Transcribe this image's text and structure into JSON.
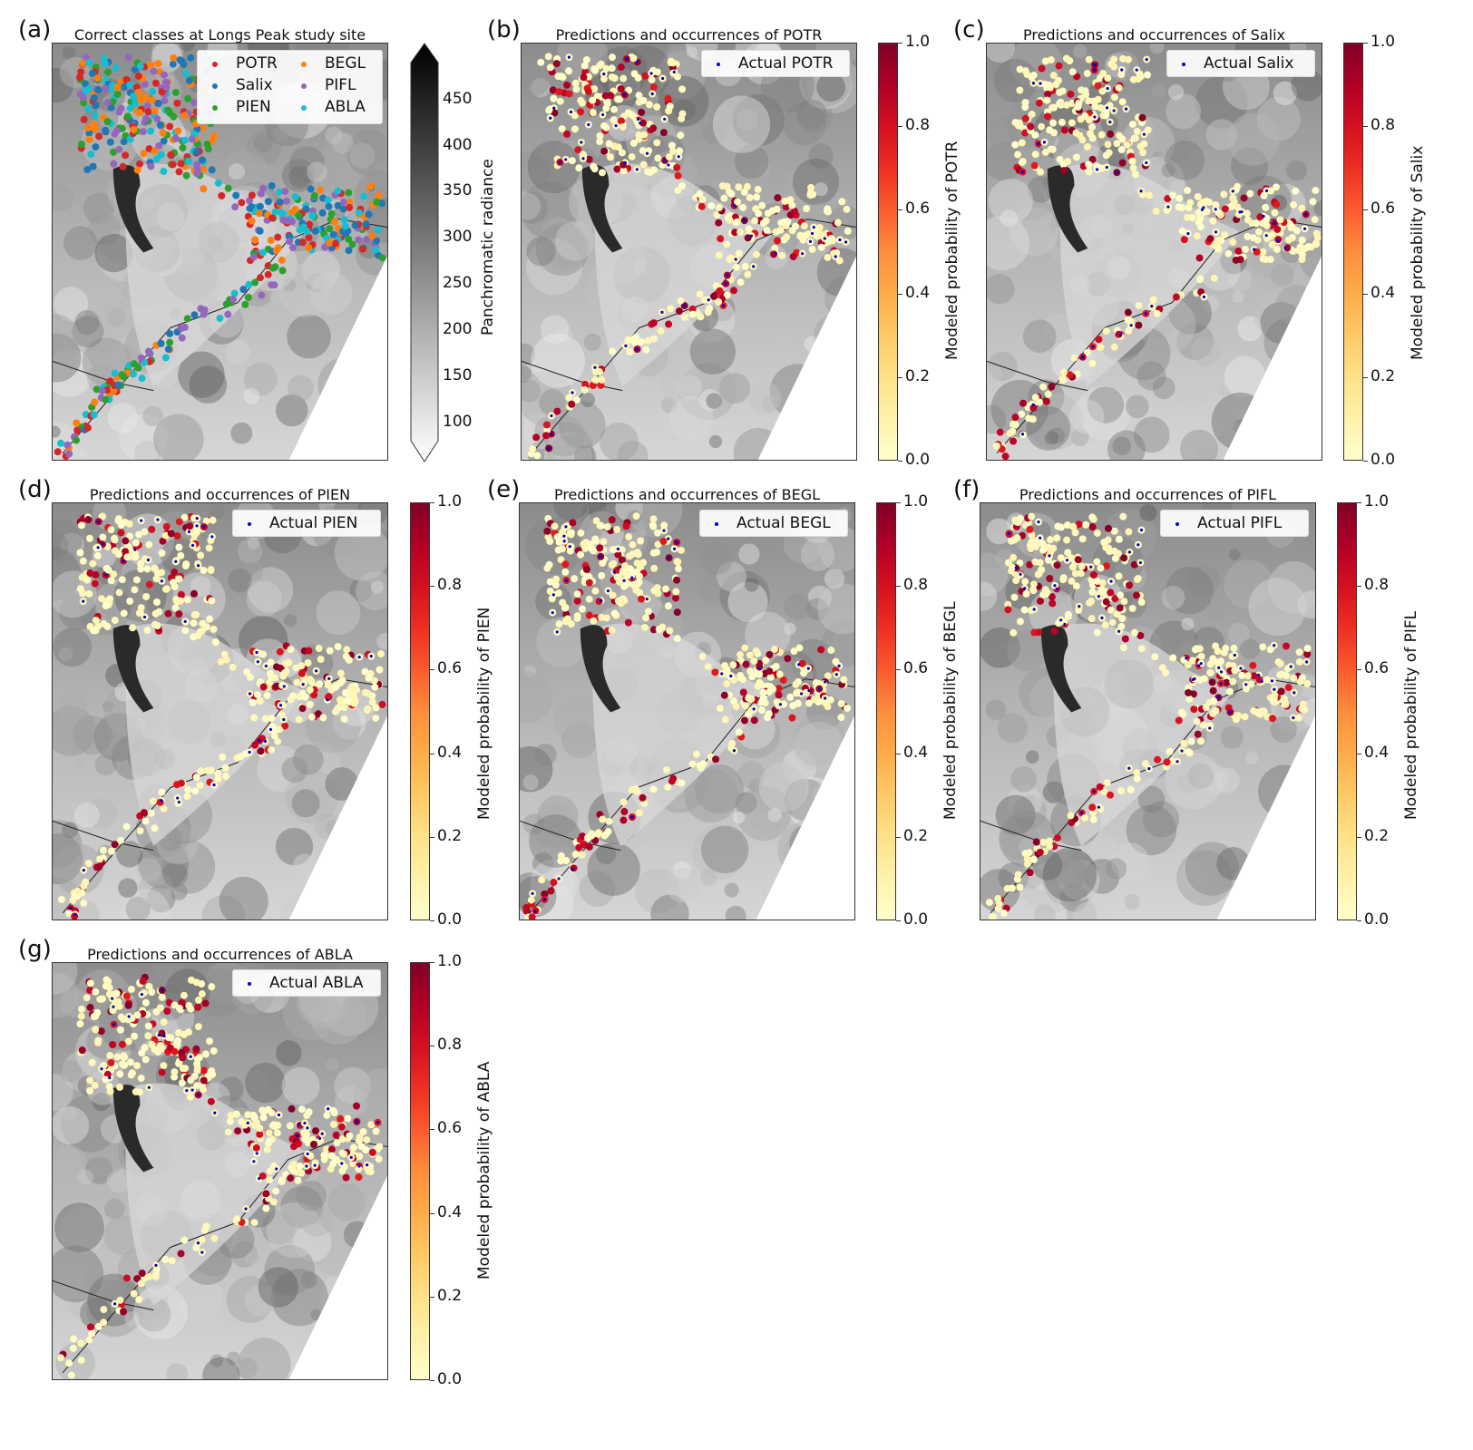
{
  "panels": [
    {
      "letter": "(a)",
      "title": "Correct classes at Longs Peak study site"
    },
    {
      "letter": "(b)",
      "title": "Predictions and occurrences of POTR",
      "legend": "Actual POTR",
      "cbar_label": "Modeled probability of POTR"
    },
    {
      "letter": "(c)",
      "title": "Predictions and occurrences of Salix",
      "legend": "Actual Salix",
      "cbar_label": "Modeled probability of Salix"
    },
    {
      "letter": "(d)",
      "title": "Predictions and occurrences of PIEN",
      "legend": "Actual PIEN",
      "cbar_label": "Modeled probability of PIEN"
    },
    {
      "letter": "(e)",
      "title": "Predictions and occurrences of BEGL",
      "legend": "Actual BEGL",
      "cbar_label": "Modeled probability of BEGL"
    },
    {
      "letter": "(f)",
      "title": "Predictions and occurrences of PIFL",
      "legend": "Actual PIFL",
      "cbar_label": "Modeled probability of PIFL"
    },
    {
      "letter": "(g)",
      "title": "Predictions and occurrences of ABLA",
      "legend": "Actual ABLA",
      "cbar_label": "Modeled probability of ABLA"
    }
  ],
  "class_legend": [
    {
      "label": "POTR",
      "color": "#d62728"
    },
    {
      "label": "BEGL",
      "color": "#ff7f0e"
    },
    {
      "label": "Salix",
      "color": "#1f77b4"
    },
    {
      "label": "PIFL",
      "color": "#9467bd"
    },
    {
      "label": "PIEN",
      "color": "#2ca02c"
    },
    {
      "label": "ABLA",
      "color": "#17becf"
    }
  ],
  "radiance_colorbar": {
    "label": "Panchromatic radiance",
    "ticks": [
      "450",
      "400",
      "350",
      "300",
      "250",
      "200",
      "150",
      "100"
    ],
    "range": [
      80,
      490
    ]
  },
  "probability_colorbar": {
    "ticks": [
      "1.0",
      "0.8",
      "0.6",
      "0.4",
      "0.2",
      "0.0"
    ],
    "colormap": "YlOrRd",
    "range": [
      0,
      1
    ]
  },
  "actual_marker_color": "#0000cc"
}
